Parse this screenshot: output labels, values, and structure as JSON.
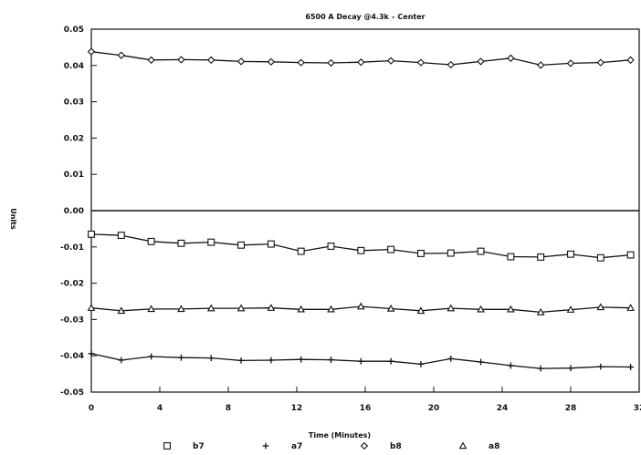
{
  "chart_data": {
    "type": "line",
    "title": "",
    "subtitle": "6500 A Decay @4.3k – Center",
    "xlabel": "Time (Minutes)",
    "ylabel": "Units",
    "xlim": [
      0,
      32
    ],
    "ylim": [
      -0.05,
      0.05
    ],
    "x_ticks": [
      0,
      4,
      8,
      12,
      16,
      20,
      24,
      28,
      32
    ],
    "x_tick_labels": [
      "0",
      "4",
      "8",
      "12",
      "16",
      "20",
      "24",
      "28",
      "32"
    ],
    "y_ticks": [
      0.05,
      0.04,
      0.03,
      0.02,
      0.01,
      0.0,
      -0.01,
      -0.02,
      -0.03,
      -0.04,
      -0.05
    ],
    "y_tick_labels": [
      "0.05",
      "0.04",
      "0.03",
      "0.02",
      "0.01",
      "0.00",
      "-0.01",
      "-0.02",
      "-0.03",
      "-0.04",
      "-0.05"
    ],
    "zero_line": true,
    "grid": false,
    "legend_placement": "bottom",
    "x": [
      0,
      1.75,
      3.5,
      5.25,
      7,
      8.75,
      10.5,
      12.25,
      14,
      15.75,
      17.5,
      19.25,
      21,
      22.75,
      24.5,
      26.25,
      28,
      29.75,
      31.5
    ],
    "series": [
      {
        "name": "b7",
        "marker": "square",
        "values": [
          -0.0065,
          -0.0068,
          -0.0085,
          -0.009,
          -0.0087,
          -0.0095,
          -0.0092,
          -0.0112,
          -0.0098,
          -0.011,
          -0.0107,
          -0.0118,
          -0.0117,
          -0.0112,
          -0.0127,
          -0.0128,
          -0.012,
          -0.013,
          -0.0122
        ]
      },
      {
        "name": "a7",
        "marker": "plus",
        "values": [
          -0.0394,
          -0.0412,
          -0.0402,
          -0.0405,
          -0.0406,
          -0.0413,
          -0.0412,
          -0.041,
          -0.0411,
          -0.0415,
          -0.0415,
          -0.0423,
          -0.0408,
          -0.0417,
          -0.0427,
          -0.0435,
          -0.0434,
          -0.043,
          -0.0431
        ]
      },
      {
        "name": "b8",
        "marker": "diamond",
        "values": [
          0.0438,
          0.0428,
          0.0415,
          0.0416,
          0.0415,
          0.0411,
          0.041,
          0.0408,
          0.0407,
          0.0409,
          0.0413,
          0.0408,
          0.0402,
          0.0411,
          0.042,
          0.0401,
          0.0406,
          0.0408,
          0.0415
        ]
      },
      {
        "name": "a8",
        "marker": "triangle",
        "values": [
          -0.0268,
          -0.0276,
          -0.0271,
          -0.0271,
          -0.0269,
          -0.0269,
          -0.0268,
          -0.0272,
          -0.0272,
          -0.0264,
          -0.027,
          -0.0276,
          -0.0269,
          -0.0272,
          -0.0272,
          -0.028,
          -0.0273,
          -0.0266,
          -0.0268
        ]
      }
    ]
  }
}
